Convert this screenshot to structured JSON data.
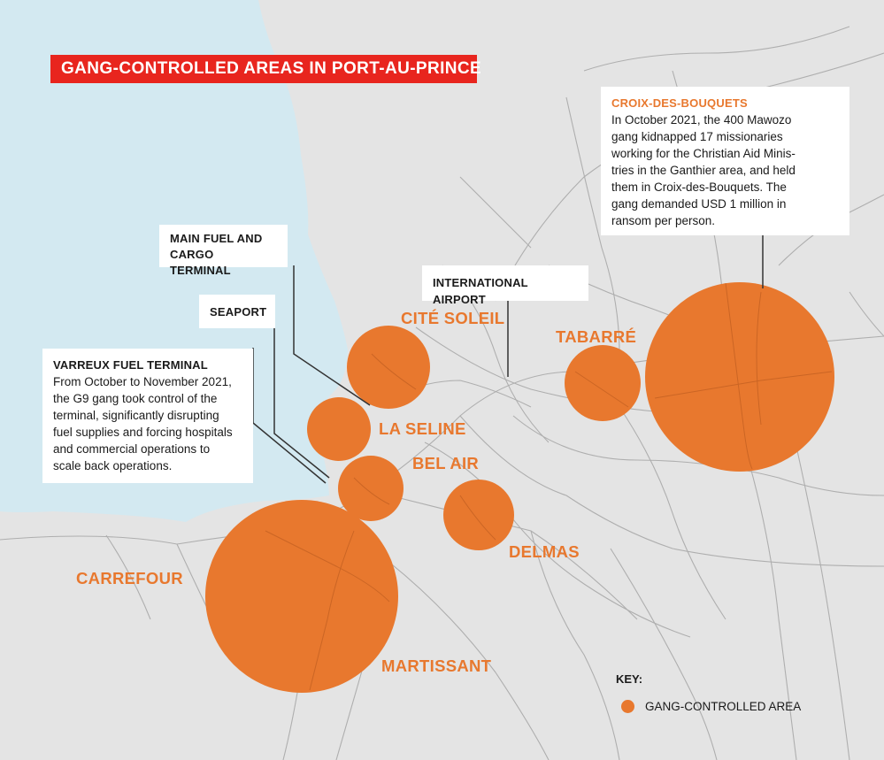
{
  "title": "GANG-CONTROLLED AREAS IN PORT-AU-PRINCE",
  "callouts": {
    "croix": {
      "heading": "CROIX-DES-BOUQUETS",
      "lines": [
        "In October 2021, the 400 Mawozo",
        "gang kidnapped 17 missionaries",
        "working for the Christian Aid Minis-",
        "tries in the Ganthier area, and held",
        "them in Croix-des-Bouquets. The",
        "gang demanded USD 1 million in",
        "ransom per person."
      ]
    },
    "fuel_cargo": {
      "lines": [
        "MAIN FUEL AND",
        "CARGO TERMINAL"
      ]
    },
    "seaport": {
      "heading": "SEAPORT"
    },
    "airport": {
      "heading": "INTERNATIONAL AIRPORT"
    },
    "varreux": {
      "heading": "VARREUX FUEL TERMINAL",
      "lines": [
        "From October to November 2021,",
        "the G9 gang took control of the",
        "terminal, significantly disrupting",
        "fuel supplies and forcing hospitals",
        "and commercial operations to",
        "scale back operations."
      ]
    }
  },
  "areas": {
    "cite_soleil": "CITÉ SOLEIL",
    "la_seline": "LA SELINE",
    "bel_air": "BEL AIR",
    "delmas": "DELMAS",
    "tabarre": "TABARRÉ",
    "carrefour": "CARREFOUR",
    "martissant": "MARTISSANT"
  },
  "key": {
    "title": "KEY:",
    "item": "GANG-CONTROLLED AREA"
  },
  "colors": {
    "sea": "#d3e9f1",
    "land": "#e4e4e4",
    "gang_area": "#e8782e",
    "title_bg": "#e8251e",
    "roads": "#a9a9a9"
  }
}
